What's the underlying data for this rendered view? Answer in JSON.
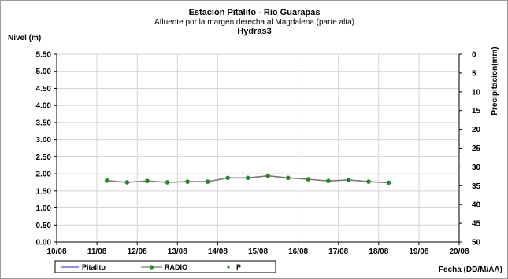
{
  "chart_data": {
    "type": "line",
    "title": "Estación Pitalito  - Río Guarapas",
    "subtitle": "Afluente por la margen derecha al Magdalena (parte alta)",
    "subtitle2": "Hydras3",
    "ylabel": "Nivel (m)",
    "y2label": "Precipitacion(mm)",
    "xlabel": "Fecha (DD/M/AA)",
    "x_ticks": [
      "10/08",
      "11/08",
      "12/08",
      "13/08",
      "14/08",
      "15/08",
      "16/08",
      "17/08",
      "18/08",
      "19/08",
      "20/08"
    ],
    "y_ticks": [
      "0.00",
      "0.50",
      "1.00",
      "1.50",
      "2.00",
      "2.50",
      "3.00",
      "3.50",
      "4.00",
      "4.50",
      "5.00",
      "5.50"
    ],
    "y2_ticks": [
      "0",
      "5",
      "10",
      "15",
      "20",
      "25",
      "30",
      "35",
      "40",
      "45",
      "50"
    ],
    "xlim": [
      0,
      10
    ],
    "ylim": [
      0,
      5.5
    ],
    "y2lim": [
      0,
      50
    ],
    "y2_inverted": true,
    "grid": true,
    "legend_position": "bottom-left",
    "series": [
      {
        "name": "Pitalito",
        "color": "#4a4ae0",
        "marker": "none",
        "x": [],
        "y": []
      },
      {
        "name": "RADIO",
        "color": "#7a7a7a",
        "marker_color": "#1e8c1e",
        "marker": "circle",
        "x": [
          1.25,
          1.75,
          2.25,
          2.75,
          3.25,
          3.75,
          4.25,
          4.75,
          5.25,
          5.75,
          6.25,
          6.75,
          7.25,
          7.75,
          8.25
        ],
        "y": [
          1.8,
          1.75,
          1.79,
          1.75,
          1.77,
          1.77,
          1.88,
          1.88,
          1.94,
          1.88,
          1.84,
          1.79,
          1.82,
          1.77,
          1.74
        ]
      },
      {
        "name": "P",
        "color": "#1e8c1e",
        "marker": "dot",
        "x": [],
        "y": []
      }
    ]
  }
}
